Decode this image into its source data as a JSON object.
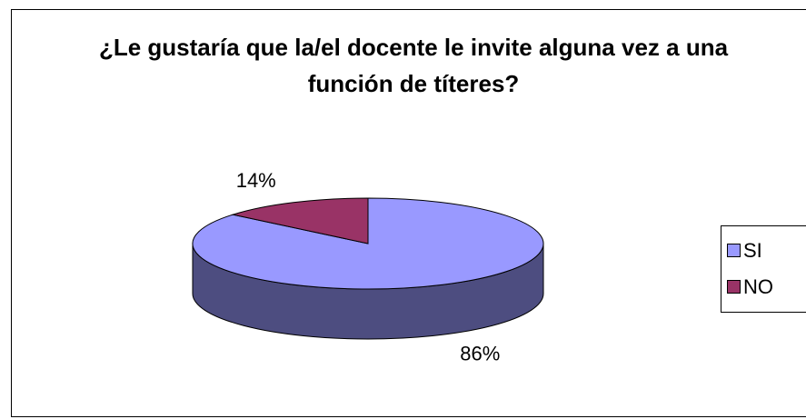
{
  "chart_data": {
    "type": "pie",
    "title": "¿Le gustaría que la/el docente le invite alguna vez a una función de títeres?",
    "categories": [
      "SI",
      "NO"
    ],
    "values": [
      86,
      14
    ],
    "value_labels": [
      "86%",
      "14%"
    ],
    "colors": [
      "#9999ff",
      "#993366"
    ],
    "three_d": true,
    "legend": "right"
  }
}
